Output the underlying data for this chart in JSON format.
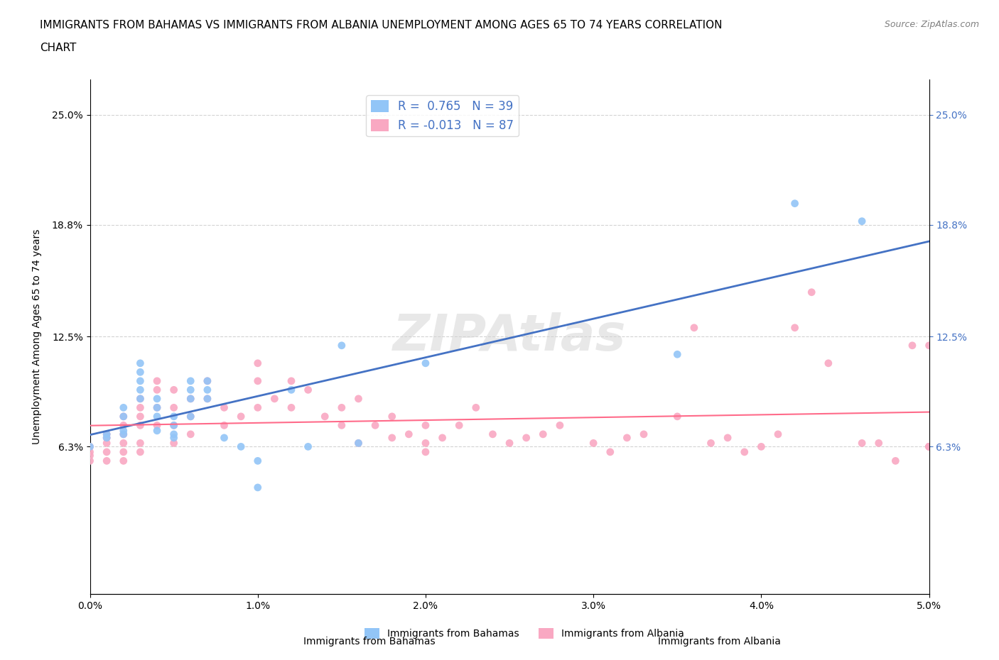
{
  "title_line1": "IMMIGRANTS FROM BAHAMAS VS IMMIGRANTS FROM ALBANIA UNEMPLOYMENT AMONG AGES 65 TO 74 YEARS CORRELATION",
  "title_line2": "CHART",
  "source": "Source: ZipAtlas.com",
  "xlabel_blue": "Immigrants from Bahamas",
  "xlabel_pink": "Immigrants from Albania",
  "ylabel": "Unemployment Among Ages 65 to 74 years",
  "xlim": [
    0.0,
    0.05
  ],
  "ylim": [
    -0.02,
    0.27
  ],
  "yticks": [
    0.063,
    0.125,
    0.188,
    0.25
  ],
  "ytick_labels": [
    "6.3%",
    "12.5%",
    "18.8%",
    "25.0%"
  ],
  "xticks": [
    0.0,
    0.01,
    0.02,
    0.03,
    0.04,
    0.05
  ],
  "xtick_labels": [
    "0.0%",
    "1.0%",
    "2.0%",
    "3.0%",
    "4.0%",
    "5.0%"
  ],
  "R_blue": 0.765,
  "N_blue": 39,
  "R_pink": -0.013,
  "N_pink": 87,
  "color_blue": "#92C5F7",
  "color_pink": "#F9A8C2",
  "line_blue": "#4472C4",
  "line_pink": "#FF6B8A",
  "watermark": "ZIPAtlas",
  "blue_scatter_x": [
    0.0,
    0.001,
    0.001,
    0.002,
    0.002,
    0.002,
    0.002,
    0.003,
    0.003,
    0.003,
    0.003,
    0.003,
    0.004,
    0.004,
    0.004,
    0.004,
    0.005,
    0.005,
    0.005,
    0.005,
    0.006,
    0.006,
    0.006,
    0.006,
    0.007,
    0.007,
    0.007,
    0.008,
    0.009,
    0.01,
    0.01,
    0.012,
    0.013,
    0.015,
    0.016,
    0.02,
    0.035,
    0.042,
    0.046
  ],
  "blue_scatter_y": [
    0.063,
    0.07,
    0.068,
    0.07,
    0.072,
    0.08,
    0.085,
    0.09,
    0.095,
    0.1,
    0.105,
    0.11,
    0.072,
    0.08,
    0.085,
    0.09,
    0.068,
    0.07,
    0.075,
    0.08,
    0.08,
    0.09,
    0.095,
    0.1,
    0.09,
    0.095,
    0.1,
    0.068,
    0.063,
    0.04,
    0.055,
    0.095,
    0.063,
    0.12,
    0.065,
    0.11,
    0.115,
    0.2,
    0.19
  ],
  "pink_scatter_x": [
    0.0,
    0.0,
    0.0,
    0.0,
    0.001,
    0.001,
    0.001,
    0.001,
    0.001,
    0.002,
    0.002,
    0.002,
    0.002,
    0.002,
    0.002,
    0.003,
    0.003,
    0.003,
    0.003,
    0.003,
    0.003,
    0.004,
    0.004,
    0.004,
    0.004,
    0.005,
    0.005,
    0.005,
    0.005,
    0.006,
    0.006,
    0.006,
    0.007,
    0.007,
    0.008,
    0.008,
    0.009,
    0.01,
    0.01,
    0.01,
    0.011,
    0.012,
    0.012,
    0.013,
    0.014,
    0.015,
    0.015,
    0.016,
    0.016,
    0.017,
    0.018,
    0.018,
    0.019,
    0.02,
    0.02,
    0.02,
    0.021,
    0.022,
    0.023,
    0.024,
    0.025,
    0.026,
    0.027,
    0.028,
    0.03,
    0.031,
    0.032,
    0.033,
    0.035,
    0.036,
    0.037,
    0.038,
    0.039,
    0.04,
    0.041,
    0.042,
    0.043,
    0.044,
    0.046,
    0.047,
    0.048,
    0.049,
    0.05,
    0.05,
    0.05,
    0.05,
    0.05
  ],
  "pink_scatter_y": [
    0.063,
    0.06,
    0.058,
    0.055,
    0.07,
    0.068,
    0.065,
    0.06,
    0.055,
    0.08,
    0.075,
    0.07,
    0.065,
    0.06,
    0.055,
    0.09,
    0.085,
    0.08,
    0.075,
    0.065,
    0.06,
    0.1,
    0.095,
    0.085,
    0.075,
    0.095,
    0.085,
    0.075,
    0.065,
    0.09,
    0.08,
    0.07,
    0.1,
    0.09,
    0.085,
    0.075,
    0.08,
    0.11,
    0.1,
    0.085,
    0.09,
    0.1,
    0.085,
    0.095,
    0.08,
    0.085,
    0.075,
    0.09,
    0.065,
    0.075,
    0.08,
    0.068,
    0.07,
    0.075,
    0.065,
    0.06,
    0.068,
    0.075,
    0.085,
    0.07,
    0.065,
    0.068,
    0.07,
    0.075,
    0.065,
    0.06,
    0.068,
    0.07,
    0.08,
    0.13,
    0.065,
    0.068,
    0.06,
    0.063,
    0.07,
    0.13,
    0.15,
    0.11,
    0.065,
    0.065,
    0.055,
    0.12,
    0.063,
    0.063,
    0.063,
    0.12,
    0.063
  ]
}
